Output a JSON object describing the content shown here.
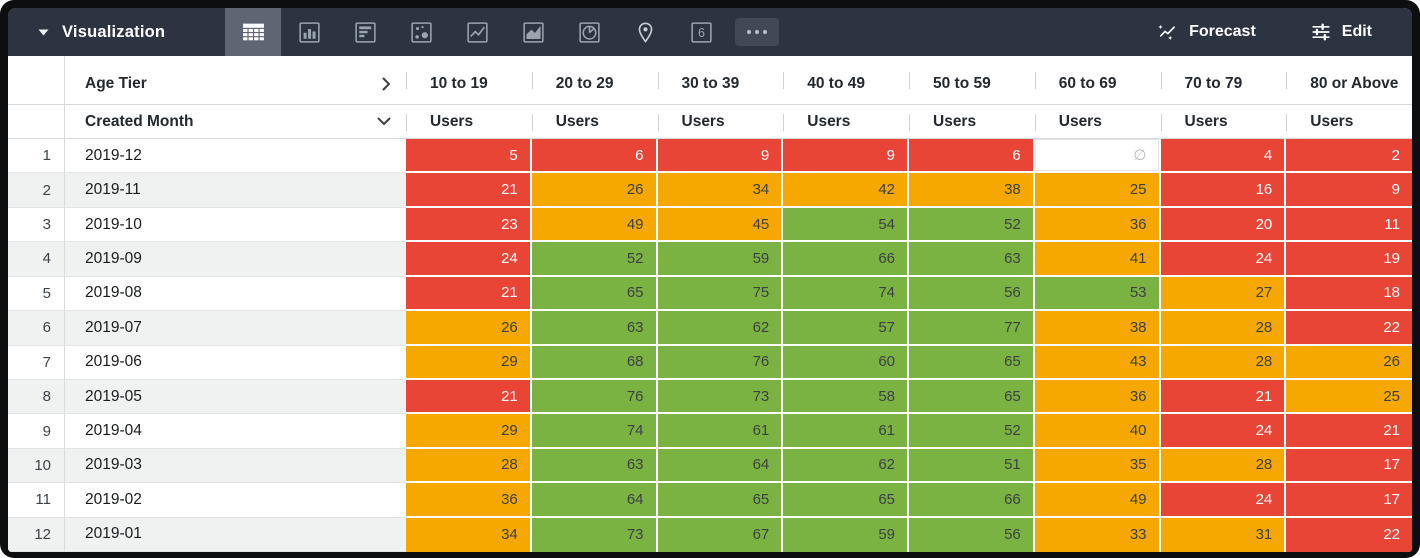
{
  "toolbar": {
    "title": "Visualization",
    "viz_types": [
      "table",
      "column-chart",
      "bar-chart",
      "scatter",
      "line-chart",
      "area-chart",
      "pie-chart",
      "map",
      "single-value",
      "more"
    ],
    "selected_viz": "table",
    "forecast_label": "Forecast",
    "edit_label": "Edit"
  },
  "table": {
    "pivot_field": "Age Tier",
    "row_field": "Created Month",
    "measure_label": "Users",
    "age_tiers": [
      "10 to 19",
      "20 to 29",
      "30 to 39",
      "40 to 49",
      "50 to 59",
      "60 to 69",
      "70 to 79",
      "80 or Above"
    ],
    "null_symbol": "∅",
    "rows": [
      {
        "num": "1",
        "month": "2019-12",
        "cells": [
          {
            "v": "5",
            "c": "red"
          },
          {
            "v": "6",
            "c": "red"
          },
          {
            "v": "9",
            "c": "red"
          },
          {
            "v": "9",
            "c": "red"
          },
          {
            "v": "6",
            "c": "red"
          },
          {
            "v": "∅",
            "c": "null"
          },
          {
            "v": "4",
            "c": "red"
          },
          {
            "v": "2",
            "c": "red"
          }
        ]
      },
      {
        "num": "2",
        "month": "2019-11",
        "cells": [
          {
            "v": "21",
            "c": "red"
          },
          {
            "v": "26",
            "c": "orange"
          },
          {
            "v": "34",
            "c": "orange"
          },
          {
            "v": "42",
            "c": "orange"
          },
          {
            "v": "38",
            "c": "orange"
          },
          {
            "v": "25",
            "c": "orange"
          },
          {
            "v": "16",
            "c": "red"
          },
          {
            "v": "9",
            "c": "red"
          }
        ]
      },
      {
        "num": "3",
        "month": "2019-10",
        "cells": [
          {
            "v": "23",
            "c": "red"
          },
          {
            "v": "49",
            "c": "orange"
          },
          {
            "v": "45",
            "c": "orange"
          },
          {
            "v": "54",
            "c": "green"
          },
          {
            "v": "52",
            "c": "green"
          },
          {
            "v": "36",
            "c": "orange"
          },
          {
            "v": "20",
            "c": "red"
          },
          {
            "v": "11",
            "c": "red"
          }
        ]
      },
      {
        "num": "4",
        "month": "2019-09",
        "cells": [
          {
            "v": "24",
            "c": "red"
          },
          {
            "v": "52",
            "c": "green"
          },
          {
            "v": "59",
            "c": "green"
          },
          {
            "v": "66",
            "c": "green"
          },
          {
            "v": "63",
            "c": "green"
          },
          {
            "v": "41",
            "c": "orange"
          },
          {
            "v": "24",
            "c": "red"
          },
          {
            "v": "19",
            "c": "red"
          }
        ]
      },
      {
        "num": "5",
        "month": "2019-08",
        "cells": [
          {
            "v": "21",
            "c": "red"
          },
          {
            "v": "65",
            "c": "green"
          },
          {
            "v": "75",
            "c": "green"
          },
          {
            "v": "74",
            "c": "green"
          },
          {
            "v": "56",
            "c": "green"
          },
          {
            "v": "53",
            "c": "green"
          },
          {
            "v": "27",
            "c": "orange"
          },
          {
            "v": "18",
            "c": "red"
          }
        ]
      },
      {
        "num": "6",
        "month": "2019-07",
        "cells": [
          {
            "v": "26",
            "c": "orange"
          },
          {
            "v": "63",
            "c": "green"
          },
          {
            "v": "62",
            "c": "green"
          },
          {
            "v": "57",
            "c": "green"
          },
          {
            "v": "77",
            "c": "green"
          },
          {
            "v": "38",
            "c": "orange"
          },
          {
            "v": "28",
            "c": "orange"
          },
          {
            "v": "22",
            "c": "red"
          }
        ]
      },
      {
        "num": "7",
        "month": "2019-06",
        "cells": [
          {
            "v": "29",
            "c": "orange"
          },
          {
            "v": "68",
            "c": "green"
          },
          {
            "v": "76",
            "c": "green"
          },
          {
            "v": "60",
            "c": "green"
          },
          {
            "v": "65",
            "c": "green"
          },
          {
            "v": "43",
            "c": "orange"
          },
          {
            "v": "28",
            "c": "orange"
          },
          {
            "v": "26",
            "c": "orange"
          }
        ]
      },
      {
        "num": "8",
        "month": "2019-05",
        "cells": [
          {
            "v": "21",
            "c": "red"
          },
          {
            "v": "76",
            "c": "green"
          },
          {
            "v": "73",
            "c": "green"
          },
          {
            "v": "58",
            "c": "green"
          },
          {
            "v": "65",
            "c": "green"
          },
          {
            "v": "36",
            "c": "orange"
          },
          {
            "v": "21",
            "c": "red"
          },
          {
            "v": "25",
            "c": "orange"
          }
        ]
      },
      {
        "num": "9",
        "month": "2019-04",
        "cells": [
          {
            "v": "29",
            "c": "orange"
          },
          {
            "v": "74",
            "c": "green"
          },
          {
            "v": "61",
            "c": "green"
          },
          {
            "v": "61",
            "c": "green"
          },
          {
            "v": "52",
            "c": "green"
          },
          {
            "v": "40",
            "c": "orange"
          },
          {
            "v": "24",
            "c": "red"
          },
          {
            "v": "21",
            "c": "red"
          }
        ]
      },
      {
        "num": "10",
        "month": "2019-03",
        "cells": [
          {
            "v": "28",
            "c": "orange"
          },
          {
            "v": "63",
            "c": "green"
          },
          {
            "v": "64",
            "c": "green"
          },
          {
            "v": "62",
            "c": "green"
          },
          {
            "v": "51",
            "c": "green"
          },
          {
            "v": "35",
            "c": "orange"
          },
          {
            "v": "28",
            "c": "orange"
          },
          {
            "v": "17",
            "c": "red"
          }
        ]
      },
      {
        "num": "11",
        "month": "2019-02",
        "cells": [
          {
            "v": "36",
            "c": "orange"
          },
          {
            "v": "64",
            "c": "green"
          },
          {
            "v": "65",
            "c": "green"
          },
          {
            "v": "65",
            "c": "green"
          },
          {
            "v": "66",
            "c": "green"
          },
          {
            "v": "49",
            "c": "orange"
          },
          {
            "v": "24",
            "c": "red"
          },
          {
            "v": "17",
            "c": "red"
          }
        ]
      },
      {
        "num": "12",
        "month": "2019-01",
        "cells": [
          {
            "v": "34",
            "c": "orange"
          },
          {
            "v": "73",
            "c": "green"
          },
          {
            "v": "67",
            "c": "green"
          },
          {
            "v": "59",
            "c": "green"
          },
          {
            "v": "56",
            "c": "green"
          },
          {
            "v": "33",
            "c": "orange"
          },
          {
            "v": "31",
            "c": "orange"
          },
          {
            "v": "22",
            "c": "red"
          }
        ]
      }
    ]
  },
  "colors": {
    "red": "#e94537",
    "orange": "#f6a800",
    "green": "#7bb342",
    "toolbar_bg": "#2c3441",
    "selected_viz_bg": "#5d6672",
    "row_band": "#f0f1f1"
  }
}
